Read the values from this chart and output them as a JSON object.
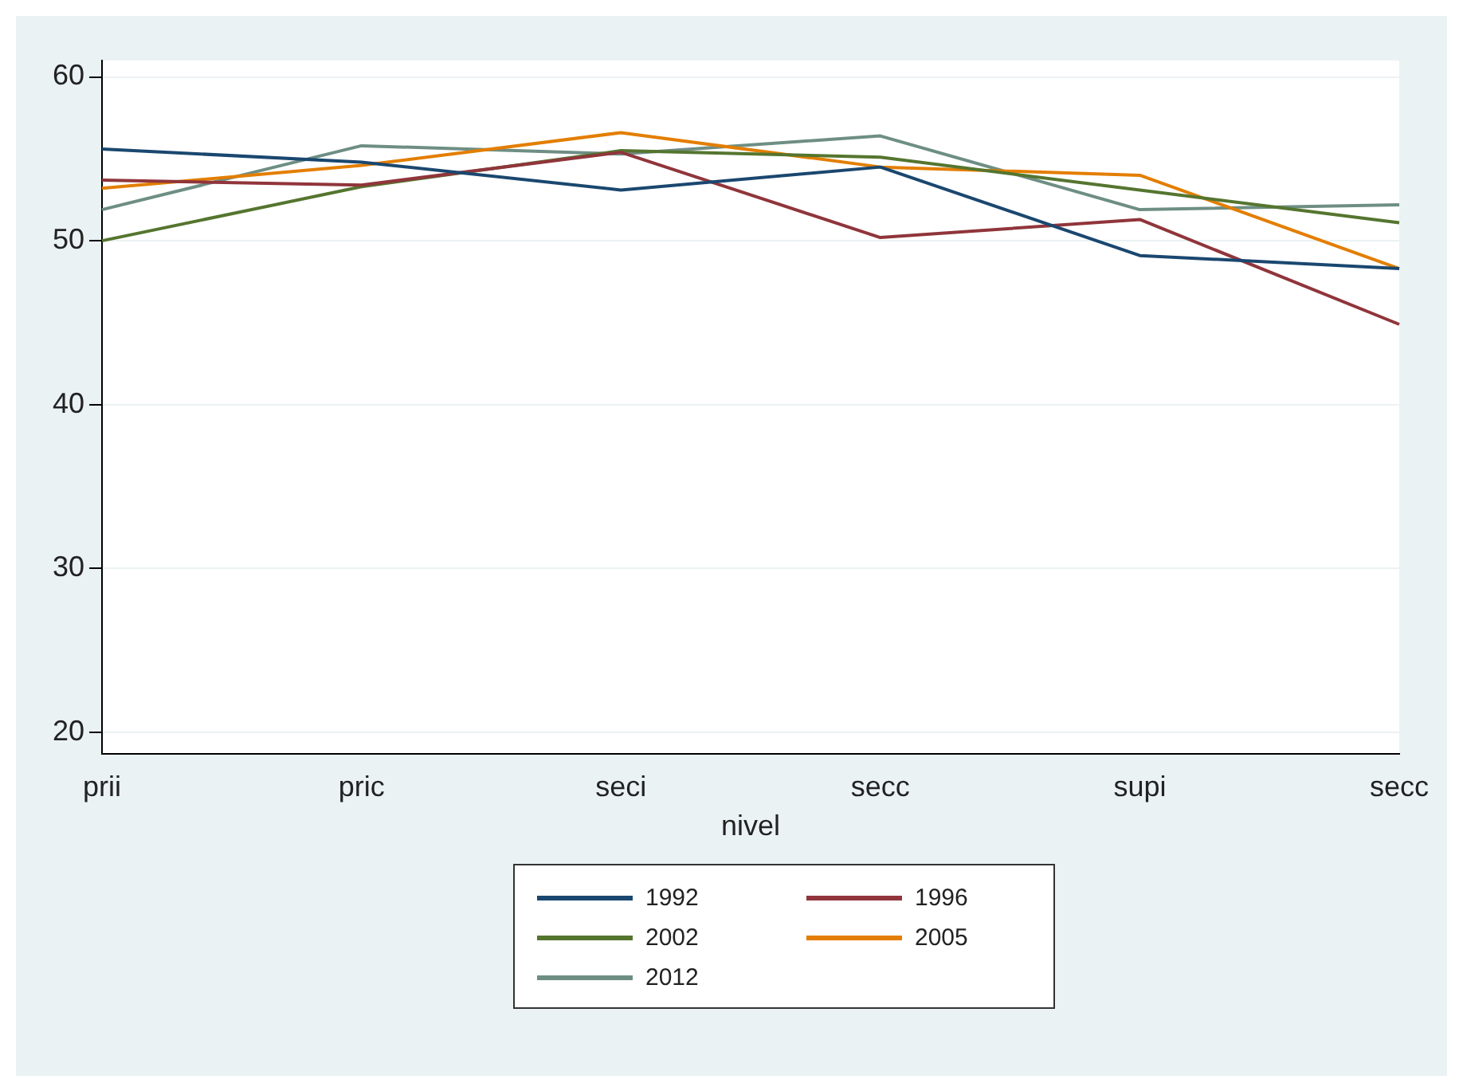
{
  "chart_data": {
    "type": "line",
    "xlabel": "nivel",
    "categories": [
      "prii",
      "pric",
      "seci",
      "secc",
      "supi",
      "secc"
    ],
    "series": [
      {
        "name": "1992",
        "color": "#1a476f",
        "values": [
          55.6,
          54.8,
          53.1,
          54.5,
          49.1,
          48.3
        ]
      },
      {
        "name": "1996",
        "color": "#90353b",
        "values": [
          53.7,
          53.4,
          55.4,
          50.2,
          51.3,
          44.9
        ]
      },
      {
        "name": "2002",
        "color": "#55752f",
        "values": [
          50.0,
          53.3,
          55.5,
          55.1,
          53.1,
          51.1
        ]
      },
      {
        "name": "2005",
        "color": "#e37e00",
        "values": [
          53.2,
          54.6,
          56.6,
          54.5,
          54.0,
          48.3
        ]
      },
      {
        "name": "2012",
        "color": "#6e8e84",
        "values": [
          51.9,
          55.8,
          55.3,
          56.4,
          51.9,
          52.2
        ]
      }
    ],
    "ylim": [
      18.7,
      61
    ],
    "yticks": [
      20,
      30,
      40,
      50,
      60
    ],
    "grid": "y",
    "legend": "bottom",
    "marker": "none",
    "line_style": "solid"
  }
}
